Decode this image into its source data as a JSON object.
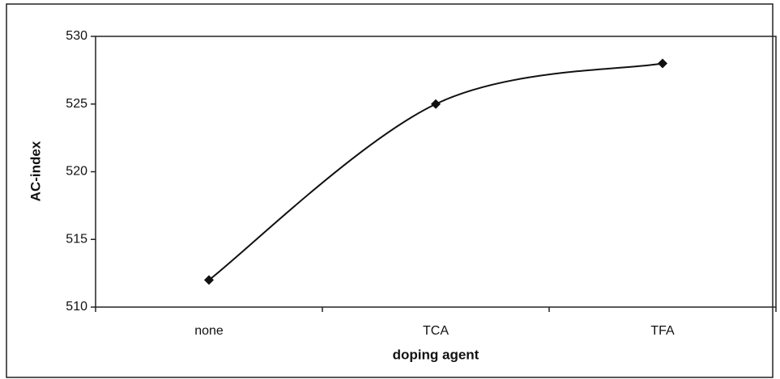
{
  "chart_data": {
    "type": "line",
    "title": null,
    "x_label": "doping agent",
    "y_label": "AC-index",
    "categories": [
      "none",
      "TCA",
      "TFA"
    ],
    "series": [
      {
        "name": null,
        "color": "#111111",
        "values": [
          512,
          525,
          528
        ]
      }
    ],
    "ylim": [
      510,
      530
    ],
    "yticks": [
      510,
      515,
      520,
      525,
      530
    ],
    "grid": false,
    "smooth": true
  }
}
